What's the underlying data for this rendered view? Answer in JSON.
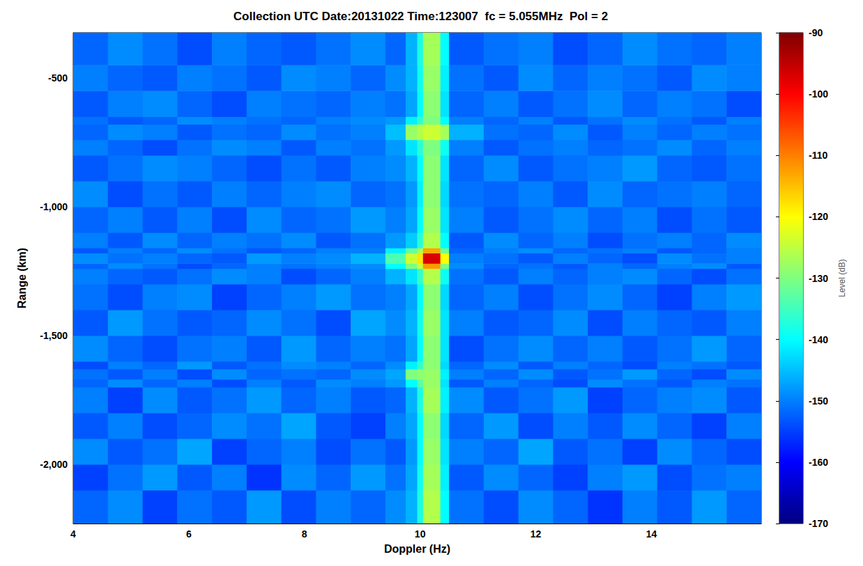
{
  "chart_data": {
    "type": "heatmap",
    "title": "Collection UTC Date:20131022 Time:123007  fc = 5.055MHz  Pol = 2",
    "x_label": "Doppler (Hz)",
    "y_label": "Range (km)",
    "xlim": [
      4,
      15.9
    ],
    "xticks": [
      4,
      6,
      8,
      10,
      12,
      14
    ],
    "ylim": [
      -2230,
      -325
    ],
    "yticks": [
      -2000,
      -1500,
      -1000,
      -500
    ],
    "grid": false,
    "color": "jet",
    "x_edges": [
      4,
      4.6,
      5.2,
      5.8,
      6.4,
      7,
      7.6,
      8.2,
      8.8,
      9.4,
      9.75,
      9.95,
      10.05,
      10.35,
      10.5,
      11.1,
      11.7,
      12.3,
      12.9,
      13.5,
      14.1,
      14.7,
      15.3,
      15.9
    ],
    "y_edges": [
      -2230,
      -2100,
      -2000,
      -1900,
      -1800,
      -1700,
      -1670,
      -1630,
      -1600,
      -1500,
      -1400,
      -1300,
      -1240,
      -1220,
      -1180,
      -1160,
      -1100,
      -1000,
      -900,
      -800,
      -740,
      -680,
      -650,
      -550,
      -450,
      -325
    ],
    "values": [
      [
        -152,
        -149,
        -155,
        -151,
        -153,
        -148,
        -154,
        -150,
        -152,
        -149,
        -146,
        -138,
        -126,
        -140,
        -151,
        -154,
        -149,
        -152,
        -156,
        -150,
        -153,
        -148,
        -152
      ],
      [
        -155,
        -151,
        -148,
        -153,
        -150,
        -156,
        -149,
        -152,
        -148,
        -151,
        -147,
        -139,
        -127,
        -141,
        -153,
        -149,
        -152,
        -155,
        -150,
        -148,
        -154,
        -151,
        -150
      ],
      [
        -149,
        -153,
        -151,
        -147,
        -155,
        -152,
        -150,
        -154,
        -151,
        -153,
        -148,
        -140,
        -128,
        -142,
        -150,
        -152,
        -147,
        -153,
        -151,
        -155,
        -149,
        -152,
        -154
      ],
      [
        -153,
        -150,
        -154,
        -152,
        -149,
        -151,
        -147,
        -153,
        -155,
        -150,
        -147,
        -140,
        -129,
        -143,
        -152,
        -148,
        -154,
        -150,
        -153,
        -149,
        -152,
        -155,
        -150
      ],
      [
        -150,
        -155,
        -149,
        -153,
        -151,
        -148,
        -152,
        -150,
        -153,
        -152,
        -146,
        -138,
        -127,
        -141,
        -149,
        -153,
        -151,
        -148,
        -155,
        -152,
        -150,
        -149,
        -153
      ],
      [
        -152,
        -149,
        -152,
        -150,
        -154,
        -150,
        -153,
        -149,
        -150,
        -148,
        -140,
        -133,
        -128,
        -142,
        -153,
        -150,
        -152,
        -154,
        -149,
        -151,
        -153,
        -150,
        -151
      ],
      [
        -151,
        -153,
        -150,
        -154,
        -149,
        -152,
        -151,
        -152,
        -149,
        -147,
        -130,
        -129,
        -128,
        -141,
        -150,
        -152,
        -149,
        -153,
        -151,
        -148,
        -152,
        -154,
        -149
      ],
      [
        -154,
        -150,
        -152,
        -148,
        -153,
        -151,
        -149,
        -150,
        -152,
        -149,
        -141,
        -136,
        -129,
        -143,
        -152,
        -149,
        -153,
        -150,
        -152,
        -154,
        -150,
        -151,
        -153
      ],
      [
        -149,
        -152,
        -154,
        -151,
        -150,
        -153,
        -148,
        -152,
        -150,
        -151,
        -147,
        -140,
        -129,
        -142,
        -154,
        -151,
        -149,
        -152,
        -150,
        -153,
        -151,
        -148,
        -152
      ],
      [
        -153,
        -148,
        -151,
        -153,
        -152,
        -149,
        -151,
        -154,
        -147,
        -149,
        -146,
        -139,
        -128,
        -142,
        -150,
        -153,
        -152,
        -149,
        -154,
        -150,
        -152,
        -153,
        -150
      ],
      [
        -151,
        -154,
        -150,
        -149,
        -155,
        -152,
        -150,
        -148,
        -151,
        -150,
        -147,
        -140,
        -129,
        -143,
        -152,
        -150,
        -154,
        -151,
        -149,
        -152,
        -155,
        -150,
        -148
      ],
      [
        -150,
        -152,
        -153,
        -151,
        -149,
        -150,
        -154,
        -152,
        -150,
        -146,
        -142,
        -136,
        -126,
        -139,
        -151,
        -153,
        -150,
        -152,
        -150,
        -149,
        -152,
        -154,
        -151
      ],
      [
        -152,
        -149,
        -151,
        -154,
        -152,
        -150,
        -151,
        -150,
        -149,
        -140,
        -130,
        -124,
        -112,
        -130,
        -149,
        -152,
        -151,
        -153,
        -150,
        -152,
        -150,
        -149,
        -153
      ],
      [
        -149,
        -151,
        -150,
        -152,
        -153,
        -148,
        -150,
        -149,
        -146,
        -134,
        -124,
        -118,
        -97,
        -120,
        -150,
        -151,
        -153,
        -150,
        -152,
        -154,
        -149,
        -151,
        -150
      ],
      [
        -153,
        -150,
        -152,
        -149,
        -151,
        -153,
        -152,
        -150,
        -150,
        -141,
        -132,
        -126,
        -113,
        -131,
        -152,
        -150,
        -149,
        -152,
        -151,
        -150,
        -153,
        -152,
        -150
      ],
      [
        -150,
        -153,
        -149,
        -152,
        -150,
        -151,
        -149,
        -153,
        -151,
        -148,
        -144,
        -137,
        -126,
        -140,
        -153,
        -149,
        -152,
        -150,
        -154,
        -151,
        -150,
        -152,
        -149
      ],
      [
        -152,
        -150,
        -153,
        -150,
        -154,
        -149,
        -152,
        -151,
        -148,
        -150,
        -147,
        -140,
        -128,
        -142,
        -150,
        -153,
        -151,
        -149,
        -152,
        -150,
        -154,
        -151,
        -153
      ],
      [
        -149,
        -154,
        -151,
        -153,
        -150,
        -152,
        -150,
        -149,
        -152,
        -151,
        -148,
        -141,
        -129,
        -143,
        -151,
        -152,
        -150,
        -153,
        -149,
        -152,
        -151,
        -150,
        -152
      ],
      [
        -153,
        -151,
        -149,
        -150,
        -152,
        -154,
        -151,
        -153,
        -150,
        -149,
        -146,
        -140,
        -129,
        -142,
        -152,
        -149,
        -153,
        -151,
        -150,
        -148,
        -152,
        -153,
        -151
      ],
      [
        -150,
        -152,
        -154,
        -151,
        -149,
        -150,
        -153,
        -150,
        -151,
        -148,
        -142,
        -137,
        -130,
        -139,
        -150,
        -153,
        -151,
        -150,
        -152,
        -151,
        -149,
        -152,
        -150
      ],
      [
        -152,
        -149,
        -150,
        -153,
        -151,
        -152,
        -149,
        -151,
        -150,
        -145,
        -128,
        -126,
        -124,
        -127,
        -146,
        -151,
        -152,
        -149,
        -153,
        -150,
        -152,
        -150,
        -151
      ],
      [
        -151,
        -153,
        -152,
        -149,
        -150,
        -151,
        -152,
        -150,
        -149,
        -148,
        -141,
        -136,
        -130,
        -140,
        -150,
        -152,
        -150,
        -153,
        -151,
        -149,
        -151,
        -153,
        -150
      ],
      [
        -153,
        -150,
        -149,
        -152,
        -154,
        -150,
        -151,
        -152,
        -150,
        -151,
        -147,
        -140,
        -129,
        -142,
        -152,
        -150,
        -153,
        -151,
        -149,
        -152,
        -150,
        -151,
        -154
      ],
      [
        -150,
        -152,
        -153,
        -150,
        -151,
        -153,
        -149,
        -150,
        -152,
        -149,
        -146,
        -139,
        -128,
        -141,
        -151,
        -153,
        -149,
        -152,
        -150,
        -151,
        -153,
        -149,
        -150
      ],
      [
        -152,
        -149,
        -151,
        -154,
        -150,
        -152,
        -153,
        -151,
        -149,
        -152,
        -146,
        -138,
        -127,
        -140,
        -153,
        -151,
        -150,
        -154,
        -152,
        -149,
        -151,
        -152,
        -150
      ]
    ],
    "colorbar": {
      "label": "Level (dB)",
      "range": [
        -170,
        -90
      ],
      "ticks": [
        -170,
        -160,
        -150,
        -140,
        -130,
        -120,
        -110,
        -100,
        -90
      ]
    }
  }
}
